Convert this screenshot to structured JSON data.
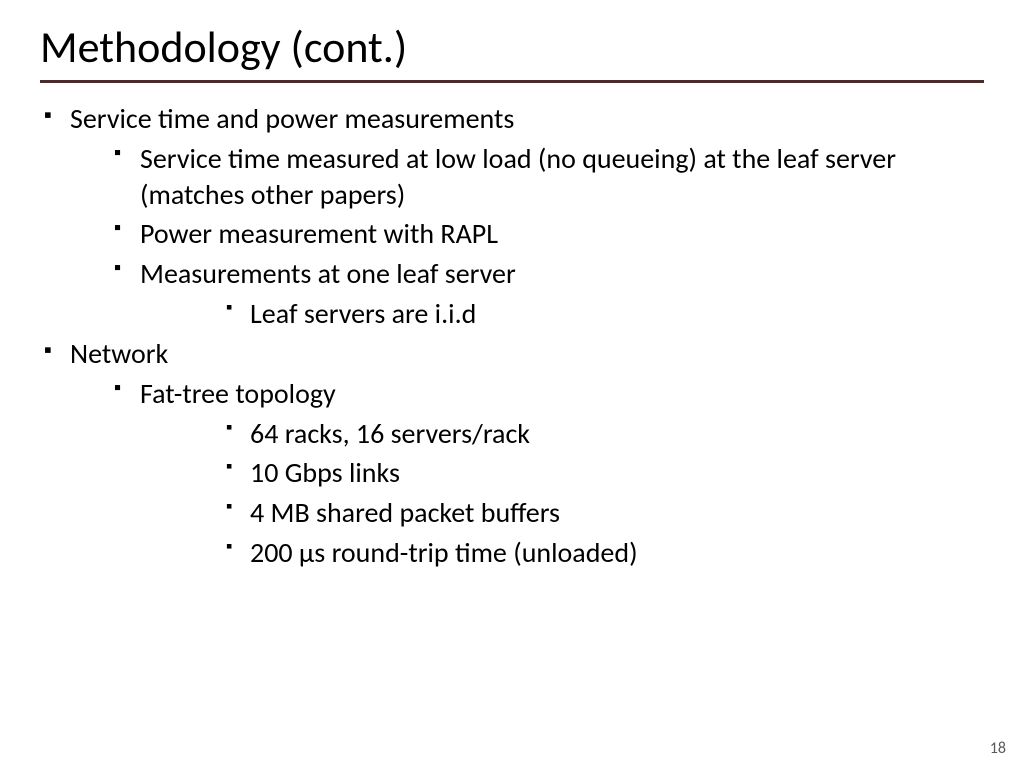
{
  "slide": {
    "title": "Methodology (cont.)",
    "rule_color": "#4a2a2a",
    "page_number": "18",
    "bullets": {
      "b1": "Service time and power measurements",
      "b1_1": "Service time measured at low load (no queueing) at the leaf server (matches other papers)",
      "b1_2": "Power measurement with RAPL",
      "b1_3": "Measurements at one leaf server",
      "b1_3_1": "Leaf servers are i.i.d",
      "b2": "Network",
      "b2_1": "Fat-tree topology",
      "b2_1_1": "64 racks, 16 servers/rack",
      "b2_1_2": "10 Gbps links",
      "b2_1_3": "4 MB shared packet buffers",
      "b2_1_4": "200 μs round-trip time (unloaded)"
    }
  }
}
